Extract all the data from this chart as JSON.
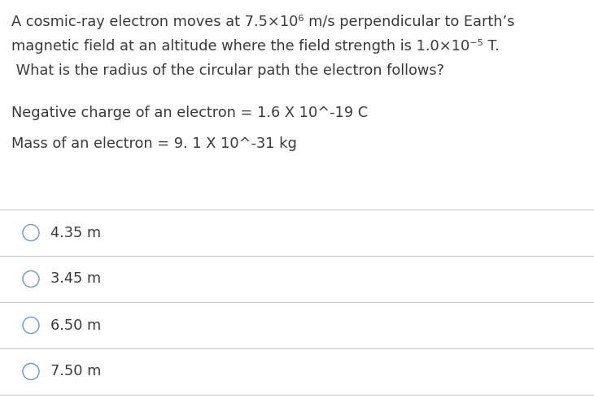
{
  "background_color": "#ffffff",
  "question_lines": [
    "A cosmic-ray electron moves at 7.5×10⁶ m/s perpendicular to Earth’s",
    "magnetic field at an altitude where the field strength is 1.0×10⁻⁵ T.",
    " What is the radius of the circular path the electron follows?"
  ],
  "given_line1": "Negative charge of an electron = 1.6 X 10^-19 C",
  "given_line2": "Mass of an electron = 9. 1 X 10^-31 kg",
  "choices": [
    "4.35 m",
    "3.45 m",
    "6.50 m",
    "7.50 m"
  ],
  "text_color": "#3a3a3a",
  "line_color": "#c8c8c8",
  "font_size_question": 12.8,
  "font_size_given": 12.8,
  "font_size_choice": 12.8,
  "circle_color": "#7a9fc0",
  "fig_width": 7.3,
  "fig_height": 4.95,
  "dpi": 100
}
